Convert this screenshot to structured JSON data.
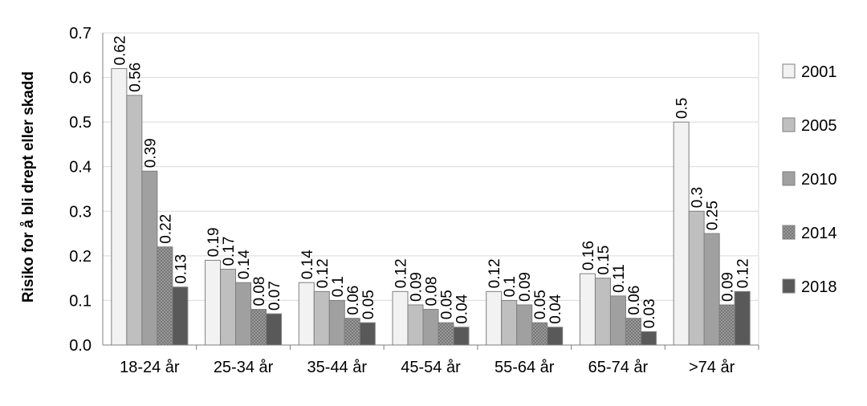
{
  "chart_data": {
    "type": "bar",
    "ylabel": "Risiko for å bli drept eller skadd",
    "categories": [
      "18-24 år",
      "25-34 år",
      "35-44 år",
      "45-54 år",
      "55-64 år",
      "65-74 år",
      ">74 år"
    ],
    "ylim": [
      0,
      0.7
    ],
    "yticks": [
      "0.0",
      "0.1",
      "0.2",
      "0.3",
      "0.4",
      "0.5",
      "0.6",
      "0.7"
    ],
    "grid": true,
    "legend_position": "right",
    "series": [
      {
        "name": "2001",
        "color": "#f2f2f2",
        "pattern": "none",
        "values": [
          0.62,
          0.19,
          0.14,
          0.12,
          0.12,
          0.16,
          0.5
        ],
        "labels": [
          "0.62",
          "0.19",
          "0.14",
          "0.12",
          "0.12",
          "0.16",
          "0.5"
        ]
      },
      {
        "name": "2005",
        "color": "#bfbfbf",
        "pattern": "none",
        "values": [
          0.56,
          0.17,
          0.12,
          0.09,
          0.1,
          0.15,
          0.3
        ],
        "labels": [
          "0.56",
          "0.17",
          "0.12",
          "0.09",
          "0.1",
          "0.15",
          "0.3"
        ]
      },
      {
        "name": "2010",
        "color": "#a0a0a0",
        "pattern": "none",
        "values": [
          0.39,
          0.14,
          0.1,
          0.08,
          0.09,
          0.11,
          0.25
        ],
        "labels": [
          "0.39",
          "0.14",
          "0.1",
          "0.08",
          "0.09",
          "0.11",
          "0.25"
        ]
      },
      {
        "name": "2014",
        "color": "#8c8c8c",
        "pattern": "dots",
        "values": [
          0.22,
          0.08,
          0.06,
          0.05,
          0.05,
          0.06,
          0.09
        ],
        "labels": [
          "0.22",
          "0.08",
          "0.06",
          "0.05",
          "0.05",
          "0.06",
          "0.09"
        ]
      },
      {
        "name": "2018",
        "color": "#595959",
        "pattern": "none",
        "values": [
          0.13,
          0.07,
          0.05,
          0.04,
          0.04,
          0.03,
          0.12
        ],
        "labels": [
          "0.13",
          "0.07",
          "0.05",
          "0.04",
          "0.04",
          "0.03",
          "0.12"
        ]
      }
    ]
  }
}
